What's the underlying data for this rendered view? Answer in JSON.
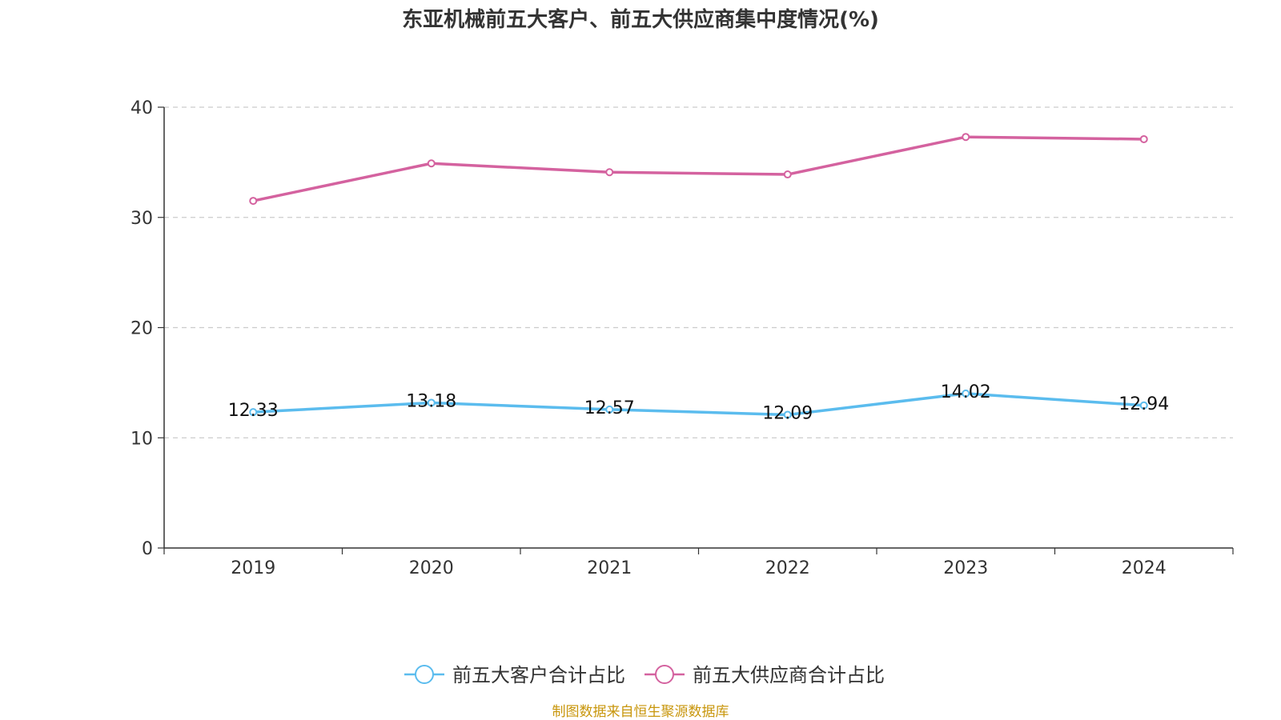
{
  "chart_data": {
    "type": "line",
    "title": "东亚机械前五大客户、前五大供应商集中度情况(%)",
    "xlabel": "",
    "ylabel": "",
    "categories": [
      "2019",
      "2020",
      "2021",
      "2022",
      "2023",
      "2024"
    ],
    "ylim": [
      0,
      40
    ],
    "yticks": [
      0,
      10,
      20,
      30,
      40
    ],
    "grid": true,
    "legend_position": "bottom-center",
    "series": [
      {
        "name": "前五大客户合计占比",
        "color": "#5bbcee",
        "values": [
          12.33,
          13.18,
          12.57,
          12.09,
          14.02,
          12.94
        ],
        "labels": [
          "12.33",
          "13.18",
          "12.57",
          "12.09",
          "14.02",
          "12.94"
        ],
        "show_labels": true
      },
      {
        "name": "前五大供应商合计占比",
        "color": "#d4629f",
        "values": [
          31.5,
          34.9,
          34.1,
          33.9,
          37.3,
          37.1
        ],
        "show_labels": false
      }
    ],
    "source": "制图数据来自恒生聚源数据库"
  }
}
